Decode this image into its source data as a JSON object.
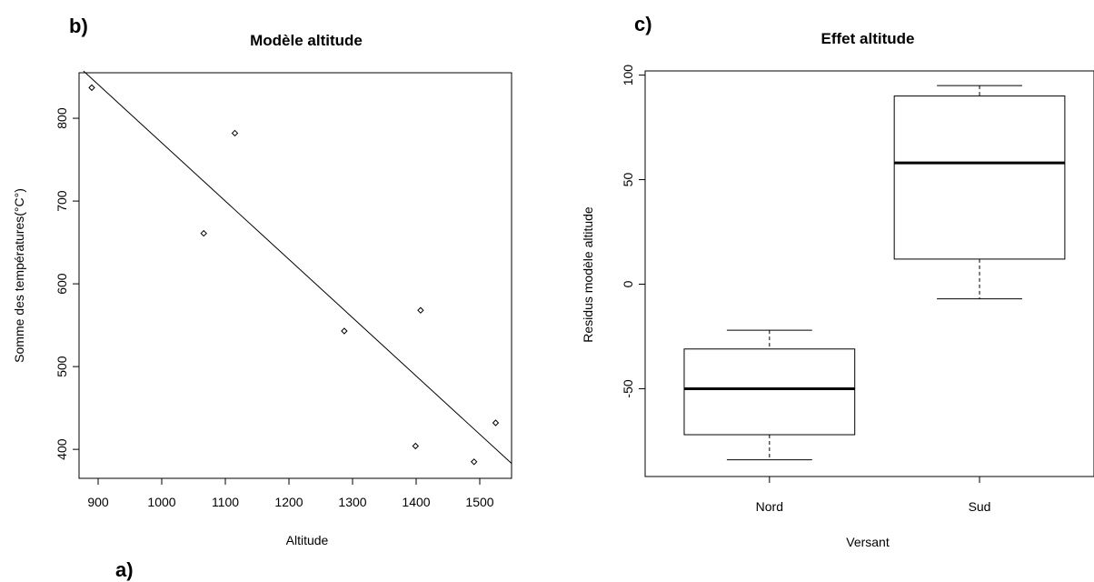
{
  "chart_data": [
    {
      "panel_label": "b)",
      "type": "scatter",
      "title": "Modèle altitude",
      "xlabel": "Altitude",
      "ylabel": "Somme des températures(°C°)",
      "xlim": [
        870,
        1550
      ],
      "ylim": [
        365,
        855
      ],
      "xticks": [
        900,
        1000,
        1100,
        1200,
        1300,
        1400,
        1500
      ],
      "yticks": [
        400,
        500,
        600,
        700,
        800
      ],
      "points": [
        {
          "x": 890,
          "y": 837
        },
        {
          "x": 1066,
          "y": 661
        },
        {
          "x": 1115,
          "y": 782
        },
        {
          "x": 1287,
          "y": 543
        },
        {
          "x": 1407,
          "y": 568
        },
        {
          "x": 1399,
          "y": 404
        },
        {
          "x": 1491,
          "y": 385
        },
        {
          "x": 1525,
          "y": 432
        }
      ],
      "regression_line": {
        "x": [
          877,
          1550
        ],
        "y": [
          857,
          383
        ]
      },
      "grid": false
    },
    {
      "panel_label": "c)",
      "type": "box",
      "title": "Effet altitude",
      "xlabel": "Versant",
      "ylabel": "Residus modèle altitude",
      "ylim": [
        -92,
        102
      ],
      "yticks": [
        -50,
        0,
        50,
        100
      ],
      "categories": [
        "Nord",
        "Sud"
      ],
      "boxes": [
        {
          "name": "Nord",
          "min": -84,
          "q1": -72,
          "median": -50,
          "q3": -31,
          "max": -22
        },
        {
          "name": "Sud",
          "min": -7,
          "q1": 12,
          "median": 58,
          "q3": 90,
          "max": 95
        }
      ],
      "grid": false
    }
  ],
  "annotations": {
    "a_label": "a)"
  }
}
